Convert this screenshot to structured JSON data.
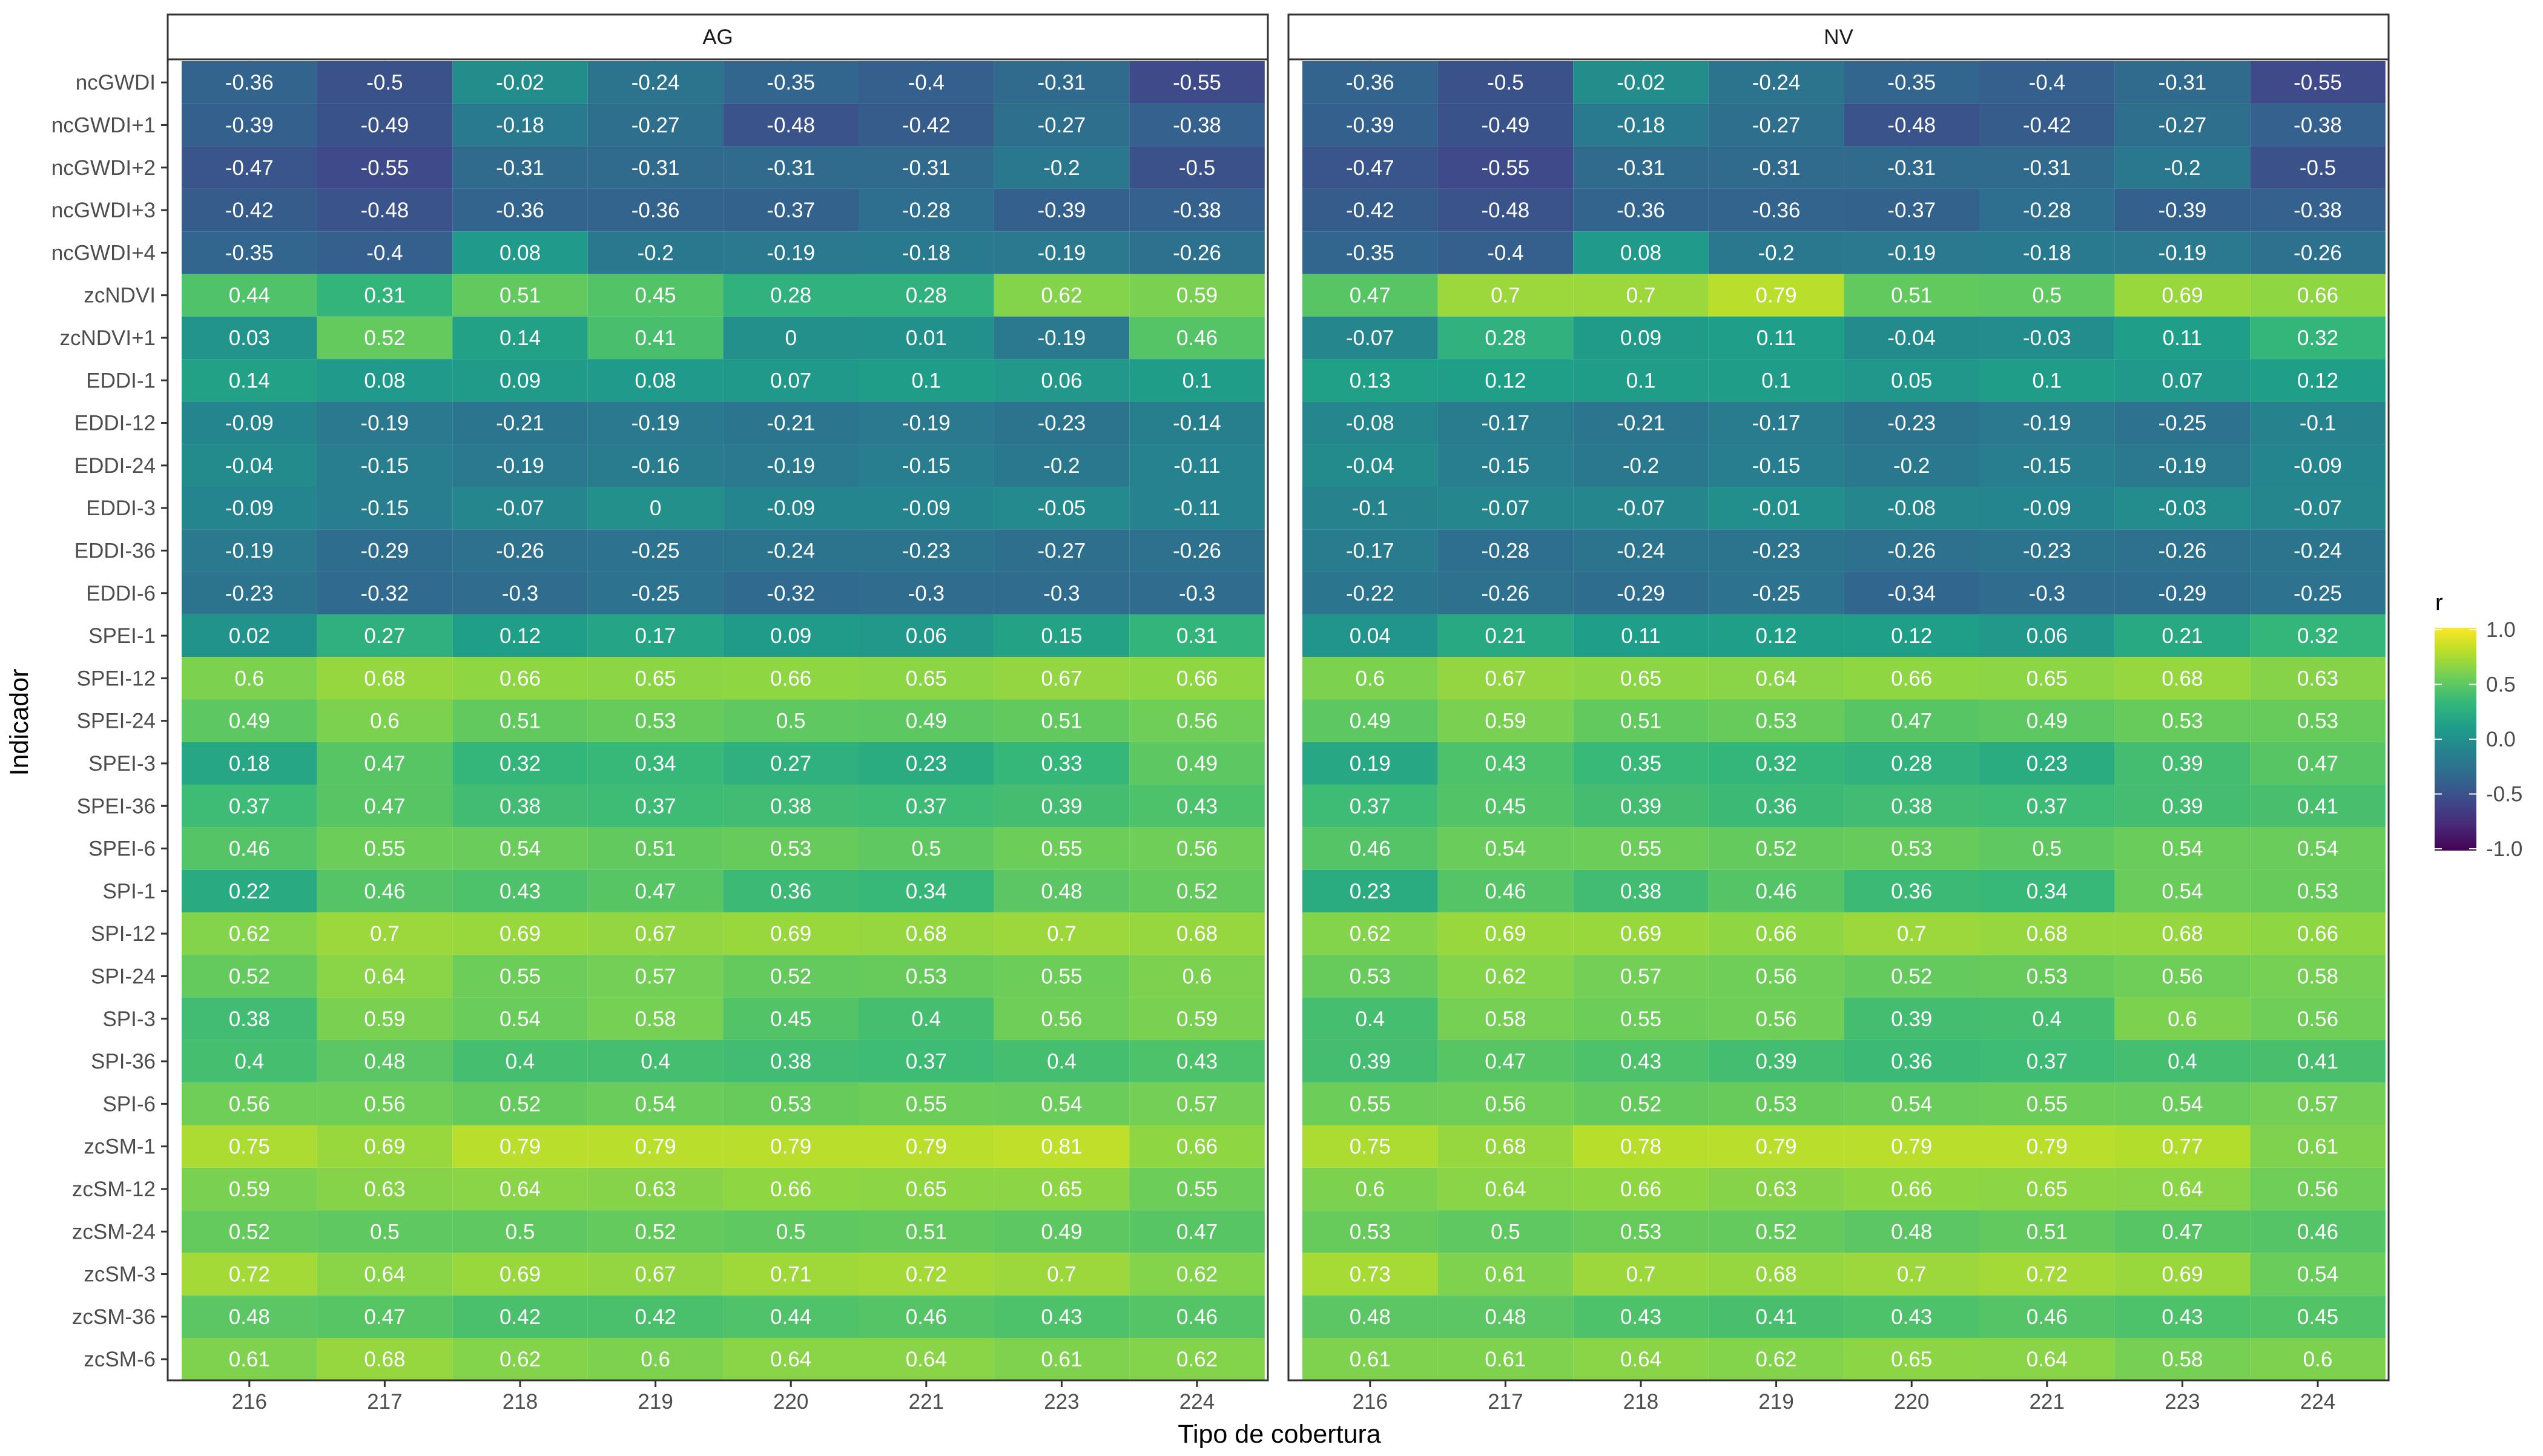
{
  "chart_data": {
    "type": "heatmap",
    "xlabel": "Tipo de cobertura",
    "ylabel": "Indicador",
    "categories": [
      "216",
      "217",
      "218",
      "219",
      "220",
      "221",
      "223",
      "224"
    ],
    "indicators": [
      "ncGWDI",
      "ncGWDI+1",
      "ncGWDI+2",
      "ncGWDI+3",
      "ncGWDI+4",
      "zcNDVI",
      "zcNDVI+1",
      "EDDI-1",
      "EDDI-12",
      "EDDI-24",
      "EDDI-3",
      "EDDI-36",
      "EDDI-6",
      "SPEI-1",
      "SPEI-12",
      "SPEI-24",
      "SPEI-3",
      "SPEI-36",
      "SPEI-6",
      "SPI-1",
      "SPI-12",
      "SPI-24",
      "SPI-3",
      "SPI-36",
      "SPI-6",
      "zcSM-1",
      "zcSM-12",
      "zcSM-24",
      "zcSM-3",
      "zcSM-36",
      "zcSM-6"
    ],
    "colorscale": {
      "name": "viridis",
      "title": "r",
      "range": [
        -1.0,
        1.0
      ],
      "ticks": [
        "1.0",
        "0.5",
        "0.0",
        "-0.5",
        "-1.0"
      ],
      "colors": [
        "#440154",
        "#482878",
        "#3e4989",
        "#31688e",
        "#26828e",
        "#1f9e89",
        "#35b779",
        "#6ece58",
        "#b5de2b",
        "#fde725"
      ]
    },
    "panels": [
      {
        "name": "AG",
        "values": [
          [
            -0.36,
            -0.5,
            -0.02,
            -0.24,
            -0.35,
            -0.4,
            -0.31,
            -0.55
          ],
          [
            -0.39,
            -0.49,
            -0.18,
            -0.27,
            -0.48,
            -0.42,
            -0.27,
            -0.38
          ],
          [
            -0.47,
            -0.55,
            -0.31,
            -0.31,
            -0.31,
            -0.31,
            -0.2,
            -0.5
          ],
          [
            -0.42,
            -0.48,
            -0.36,
            -0.36,
            -0.37,
            -0.28,
            -0.39,
            -0.38
          ],
          [
            -0.35,
            -0.4,
            0.08,
            -0.2,
            -0.19,
            -0.18,
            -0.19,
            -0.26
          ],
          [
            0.44,
            0.31,
            0.51,
            0.45,
            0.28,
            0.28,
            0.62,
            0.59
          ],
          [
            0.03,
            0.52,
            0.14,
            0.41,
            0,
            0.01,
            -0.19,
            0.46
          ],
          [
            0.14,
            0.08,
            0.09,
            0.08,
            0.07,
            0.1,
            0.06,
            0.1
          ],
          [
            -0.09,
            -0.19,
            -0.21,
            -0.19,
            -0.21,
            -0.19,
            -0.23,
            -0.14
          ],
          [
            -0.04,
            -0.15,
            -0.19,
            -0.16,
            -0.19,
            -0.15,
            -0.2,
            -0.11
          ],
          [
            -0.09,
            -0.15,
            -0.07,
            0,
            -0.09,
            -0.09,
            -0.05,
            -0.11
          ],
          [
            -0.19,
            -0.29,
            -0.26,
            -0.25,
            -0.24,
            -0.23,
            -0.27,
            -0.26
          ],
          [
            -0.23,
            -0.32,
            -0.3,
            -0.25,
            -0.32,
            -0.3,
            -0.3,
            -0.3
          ],
          [
            0.02,
            0.27,
            0.12,
            0.17,
            0.09,
            0.06,
            0.15,
            0.31
          ],
          [
            0.6,
            0.68,
            0.66,
            0.65,
            0.66,
            0.65,
            0.67,
            0.66
          ],
          [
            0.49,
            0.6,
            0.51,
            0.53,
            0.5,
            0.49,
            0.51,
            0.56
          ],
          [
            0.18,
            0.47,
            0.32,
            0.34,
            0.27,
            0.23,
            0.33,
            0.49
          ],
          [
            0.37,
            0.47,
            0.38,
            0.37,
            0.38,
            0.37,
            0.39,
            0.43
          ],
          [
            0.46,
            0.55,
            0.54,
            0.51,
            0.53,
            0.5,
            0.55,
            0.56
          ],
          [
            0.22,
            0.46,
            0.43,
            0.47,
            0.36,
            0.34,
            0.48,
            0.52
          ],
          [
            0.62,
            0.7,
            0.69,
            0.67,
            0.69,
            0.68,
            0.7,
            0.68
          ],
          [
            0.52,
            0.64,
            0.55,
            0.57,
            0.52,
            0.53,
            0.55,
            0.6
          ],
          [
            0.38,
            0.59,
            0.54,
            0.58,
            0.45,
            0.4,
            0.56,
            0.59
          ],
          [
            0.4,
            0.48,
            0.4,
            0.4,
            0.38,
            0.37,
            0.4,
            0.43
          ],
          [
            0.56,
            0.56,
            0.52,
            0.54,
            0.53,
            0.55,
            0.54,
            0.57
          ],
          [
            0.75,
            0.69,
            0.79,
            0.79,
            0.79,
            0.79,
            0.81,
            0.66
          ],
          [
            0.59,
            0.63,
            0.64,
            0.63,
            0.66,
            0.65,
            0.65,
            0.55
          ],
          [
            0.52,
            0.5,
            0.5,
            0.52,
            0.5,
            0.51,
            0.49,
            0.47
          ],
          [
            0.72,
            0.64,
            0.69,
            0.67,
            0.71,
            0.72,
            0.7,
            0.62
          ],
          [
            0.48,
            0.47,
            0.42,
            0.42,
            0.44,
            0.46,
            0.43,
            0.46
          ],
          [
            0.61,
            0.68,
            0.62,
            0.6,
            0.64,
            0.64,
            0.61,
            0.62
          ]
        ]
      },
      {
        "name": "NV",
        "values": [
          [
            -0.36,
            -0.5,
            -0.02,
            -0.24,
            -0.35,
            -0.4,
            -0.31,
            -0.55
          ],
          [
            -0.39,
            -0.49,
            -0.18,
            -0.27,
            -0.48,
            -0.42,
            -0.27,
            -0.38
          ],
          [
            -0.47,
            -0.55,
            -0.31,
            -0.31,
            -0.31,
            -0.31,
            -0.2,
            -0.5
          ],
          [
            -0.42,
            -0.48,
            -0.36,
            -0.36,
            -0.37,
            -0.28,
            -0.39,
            -0.38
          ],
          [
            -0.35,
            -0.4,
            0.08,
            -0.2,
            -0.19,
            -0.18,
            -0.19,
            -0.26
          ],
          [
            0.47,
            0.7,
            0.7,
            0.79,
            0.51,
            0.5,
            0.69,
            0.66
          ],
          [
            -0.07,
            0.28,
            0.09,
            0.11,
            -0.04,
            -0.03,
            0.11,
            0.32
          ],
          [
            0.13,
            0.12,
            0.1,
            0.1,
            0.05,
            0.1,
            0.07,
            0.12
          ],
          [
            -0.08,
            -0.17,
            -0.21,
            -0.17,
            -0.23,
            -0.19,
            -0.25,
            -0.1
          ],
          [
            -0.04,
            -0.15,
            -0.2,
            -0.15,
            -0.2,
            -0.15,
            -0.19,
            -0.09
          ],
          [
            -0.1,
            -0.07,
            -0.07,
            -0.01,
            -0.08,
            -0.09,
            -0.03,
            -0.07
          ],
          [
            -0.17,
            -0.28,
            -0.24,
            -0.23,
            -0.26,
            -0.23,
            -0.26,
            -0.24
          ],
          [
            -0.22,
            -0.26,
            -0.29,
            -0.25,
            -0.34,
            -0.3,
            -0.29,
            -0.25
          ],
          [
            0.04,
            0.21,
            0.11,
            0.12,
            0.12,
            0.06,
            0.21,
            0.32
          ],
          [
            0.6,
            0.67,
            0.65,
            0.64,
            0.66,
            0.65,
            0.68,
            0.63
          ],
          [
            0.49,
            0.59,
            0.51,
            0.53,
            0.47,
            0.49,
            0.53,
            0.53
          ],
          [
            0.19,
            0.43,
            0.35,
            0.32,
            0.28,
            0.23,
            0.39,
            0.47
          ],
          [
            0.37,
            0.45,
            0.39,
            0.36,
            0.38,
            0.37,
            0.39,
            0.41
          ],
          [
            0.46,
            0.54,
            0.55,
            0.52,
            0.53,
            0.5,
            0.54,
            0.54
          ],
          [
            0.23,
            0.46,
            0.38,
            0.46,
            0.36,
            0.34,
            0.54,
            0.53
          ],
          [
            0.62,
            0.69,
            0.69,
            0.66,
            0.7,
            0.68,
            0.68,
            0.66
          ],
          [
            0.53,
            0.62,
            0.57,
            0.56,
            0.52,
            0.53,
            0.56,
            0.58
          ],
          [
            0.4,
            0.58,
            0.55,
            0.56,
            0.39,
            0.4,
            0.6,
            0.56
          ],
          [
            0.39,
            0.47,
            0.43,
            0.39,
            0.36,
            0.37,
            0.4,
            0.41
          ],
          [
            0.55,
            0.56,
            0.52,
            0.53,
            0.54,
            0.55,
            0.54,
            0.57
          ],
          [
            0.75,
            0.68,
            0.78,
            0.79,
            0.79,
            0.79,
            0.77,
            0.61
          ],
          [
            0.6,
            0.64,
            0.66,
            0.63,
            0.66,
            0.65,
            0.64,
            0.56
          ],
          [
            0.53,
            0.5,
            0.53,
            0.52,
            0.48,
            0.51,
            0.47,
            0.46
          ],
          [
            0.73,
            0.61,
            0.7,
            0.68,
            0.7,
            0.72,
            0.69,
            0.54
          ],
          [
            0.48,
            0.48,
            0.43,
            0.41,
            0.43,
            0.46,
            0.43,
            0.45
          ],
          [
            0.61,
            0.61,
            0.64,
            0.62,
            0.65,
            0.64,
            0.58,
            0.6
          ]
        ]
      }
    ]
  }
}
